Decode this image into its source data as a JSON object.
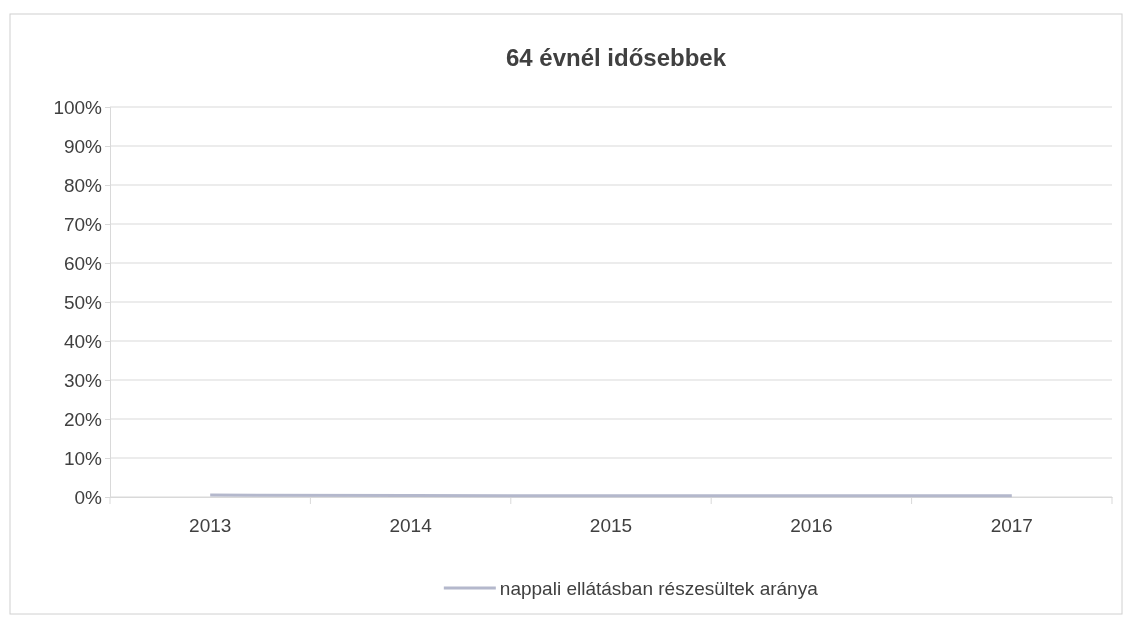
{
  "chart_data": {
    "type": "line",
    "title": "64 évnél idősebbek",
    "categories": [
      "2013",
      "2014",
      "2015",
      "2016",
      "2017"
    ],
    "series": [
      {
        "name": "nappali ellátásban részesültek aránya",
        "color": "#b4b8cc",
        "values": [
          0.5,
          0.4,
          0.3,
          0.3,
          0.3
        ]
      }
    ],
    "ylim": [
      0,
      100
    ],
    "yticks": [
      {
        "value": 0,
        "label": "0%"
      },
      {
        "value": 10,
        "label": "10%"
      },
      {
        "value": 20,
        "label": "20%"
      },
      {
        "value": 30,
        "label": "30%"
      },
      {
        "value": 40,
        "label": "40%"
      },
      {
        "value": 50,
        "label": "50%"
      },
      {
        "value": 60,
        "label": "60%"
      },
      {
        "value": 70,
        "label": "70%"
      },
      {
        "value": 80,
        "label": "80%"
      },
      {
        "value": 90,
        "label": "90%"
      },
      {
        "value": 100,
        "label": "100%"
      }
    ],
    "grid": "y",
    "legend": "bottom",
    "marker": "none",
    "line_style": "solid"
  }
}
